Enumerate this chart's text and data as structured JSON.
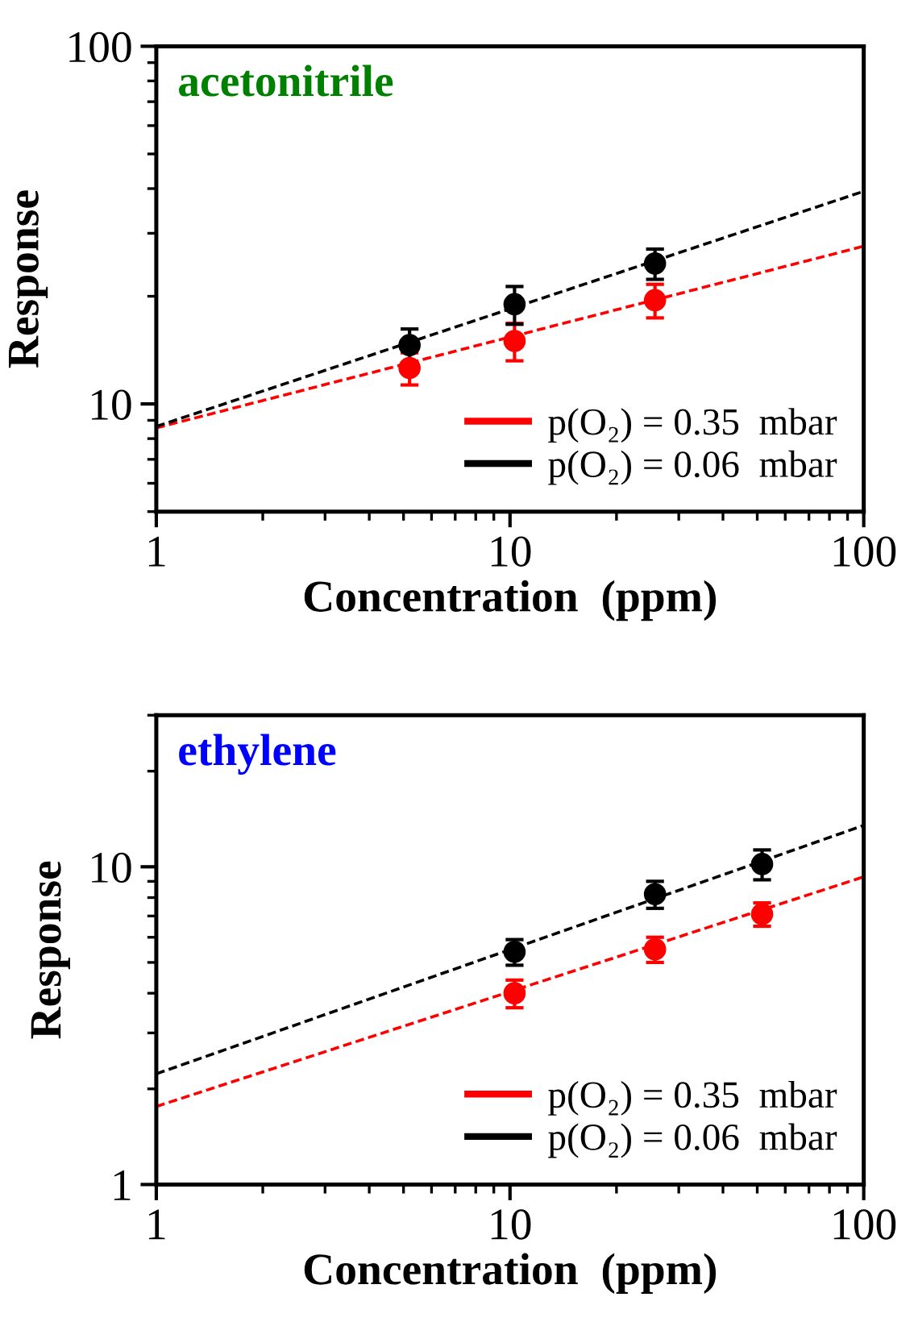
{
  "chart_data": [
    {
      "type": "scatter",
      "title": "acetonitrile",
      "xlabel": "Concentration  (ppm)",
      "ylabel": "Response",
      "log": "xy",
      "xlim": [
        1,
        100
      ],
      "ylim": [
        5,
        100
      ],
      "xticks": [
        1,
        10,
        100
      ],
      "yticks": [
        10,
        100
      ],
      "legend": "bottom right",
      "marker": "circle",
      "series": [
        {
          "name": "p(O₂) = 0.35  mbar",
          "color": "#ff0000",
          "x": [
            5.2,
            10.3,
            25.7
          ],
          "values": [
            12.6,
            15.0,
            19.5
          ],
          "errors": [
            1.3,
            1.8,
            2.1
          ]
        },
        {
          "name": "p(O₂) = 0.06  mbar",
          "color": "#000000",
          "x": [
            5.2,
            10.3,
            25.7
          ],
          "values": [
            14.6,
            19.0,
            24.7
          ],
          "errors": [
            1.6,
            2.3,
            2.4
          ]
        },
        {
          "type": "line",
          "color": "#ff0000",
          "line_style": "dashed",
          "marker": "none",
          "x": [
            1,
            100
          ],
          "values": [
            8.57,
            27.6
          ]
        },
        {
          "type": "line",
          "color": "#000000",
          "line_style": "dashed",
          "marker": "none",
          "x": [
            1,
            100
          ],
          "values": [
            8.65,
            39.3
          ]
        }
      ]
    },
    {
      "type": "scatter",
      "title": "ethylene",
      "xlabel": "Concentration  (ppm)",
      "ylabel": "Response",
      "log": "xy",
      "xlim": [
        1,
        100
      ],
      "ylim": [
        1,
        30
      ],
      "xticks": [
        1,
        10,
        100
      ],
      "yticks": [
        1,
        10
      ],
      "legend": "bottom right",
      "marker": "circle",
      "series": [
        {
          "name": "p(O₂) = 0.35  mbar",
          "color": "#ff0000",
          "x": [
            10.3,
            25.7,
            51.6
          ],
          "values": [
            4.0,
            5.5,
            7.1
          ],
          "errors": [
            0.4,
            0.5,
            0.6
          ]
        },
        {
          "name": "p(O₂) = 0.06  mbar",
          "color": "#000000",
          "x": [
            10.3,
            25.7,
            51.6
          ],
          "values": [
            5.4,
            8.2,
            10.2
          ],
          "errors": [
            0.5,
            0.8,
            1.1
          ]
        },
        {
          "type": "line",
          "color": "#ff0000",
          "line_style": "dashed",
          "marker": "none",
          "x": [
            1,
            100
          ],
          "values": [
            1.76,
            9.3
          ]
        },
        {
          "type": "line",
          "color": "#000000",
          "line_style": "dashed",
          "marker": "none",
          "x": [
            1,
            100
          ],
          "values": [
            2.23,
            13.5
          ]
        }
      ]
    }
  ]
}
